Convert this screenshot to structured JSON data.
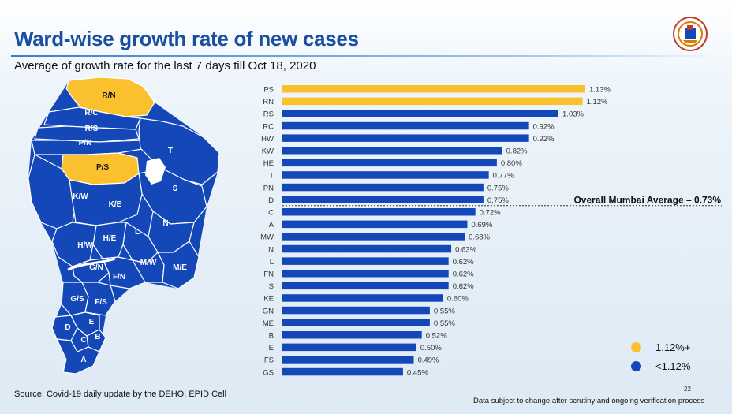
{
  "slide": {
    "title": "Ward-wise growth rate of new cases",
    "subtitle": "Average of growth rate for the last 7 days till Oct 18, 2020",
    "source": "Source: Covid-19 daily update by the DEHO, EPID Cell",
    "disclaimer": "Data subject to change after scrutiny and ongoing verification process",
    "page_number": "22"
  },
  "colors": {
    "high": "#fbc02d",
    "low": "#1448b8",
    "title": "#1a4fa0",
    "map_border": "#ffffff"
  },
  "map": {
    "wards": [
      {
        "label": "R/N",
        "group": "high"
      },
      {
        "label": "R/C",
        "group": "low"
      },
      {
        "label": "R/S",
        "group": "low"
      },
      {
        "label": "P/N",
        "group": "low"
      },
      {
        "label": "P/S",
        "group": "high"
      },
      {
        "label": "T",
        "group": "low"
      },
      {
        "label": "S",
        "group": "low"
      },
      {
        "label": "K/W",
        "group": "low"
      },
      {
        "label": "K/E",
        "group": "low"
      },
      {
        "label": "N",
        "group": "low"
      },
      {
        "label": "L",
        "group": "low"
      },
      {
        "label": "H/E",
        "group": "low"
      },
      {
        "label": "H/W",
        "group": "low"
      },
      {
        "label": "G/N",
        "group": "low"
      },
      {
        "label": "F/N",
        "group": "low"
      },
      {
        "label": "M/W",
        "group": "low"
      },
      {
        "label": "M/E",
        "group": "low"
      },
      {
        "label": "G/S",
        "group": "low"
      },
      {
        "label": "F/S",
        "group": "low"
      },
      {
        "label": "D",
        "group": "low"
      },
      {
        "label": "E",
        "group": "low"
      },
      {
        "label": "C",
        "group": "low"
      },
      {
        "label": "B",
        "group": "low"
      },
      {
        "label": "A",
        "group": "low"
      }
    ]
  },
  "legend": [
    {
      "label": "1.12%+",
      "group": "high"
    },
    {
      "label": "<1.12%",
      "group": "low"
    }
  ],
  "chart_data": {
    "type": "bar",
    "orientation": "horizontal",
    "title": "Ward-wise growth rate of new cases",
    "subtitle": "Average of growth rate for the last 7 days till Oct 18, 2020",
    "xlabel": "",
    "ylabel": "",
    "xlim": [
      0,
      1.4
    ],
    "categories": [
      "PS",
      "RN",
      "RS",
      "RC",
      "HW",
      "KW",
      "HE",
      "T",
      "PN",
      "D",
      "C",
      "A",
      "MW",
      "N",
      "L",
      "FN",
      "S",
      "KE",
      "GN",
      "ME",
      "B",
      "E",
      "FS",
      "GS"
    ],
    "values": [
      1.13,
      1.12,
      1.03,
      0.92,
      0.92,
      0.82,
      0.8,
      0.77,
      0.75,
      0.75,
      0.72,
      0.69,
      0.68,
      0.63,
      0.62,
      0.62,
      0.62,
      0.6,
      0.55,
      0.55,
      0.52,
      0.5,
      0.49,
      0.45
    ],
    "data_labels": [
      "1.13%",
      "1.12%",
      "1.03%",
      "0.92%",
      "0.92%",
      "0.82%",
      "0.80%",
      "0.77%",
      "0.75%",
      "0.75%",
      "0.72%",
      "0.69%",
      "0.68%",
      "0.63%",
      "0.62%",
      "0.62%",
      "0.62%",
      "0.60%",
      "0.55%",
      "0.55%",
      "0.52%",
      "0.50%",
      "0.49%",
      "0.45%"
    ],
    "highlight_threshold": 1.12,
    "reference_line": {
      "value": 0.73,
      "label": "Overall Mumbai Average – 0.73%"
    },
    "legend": "bottom-right",
    "grid": false
  }
}
